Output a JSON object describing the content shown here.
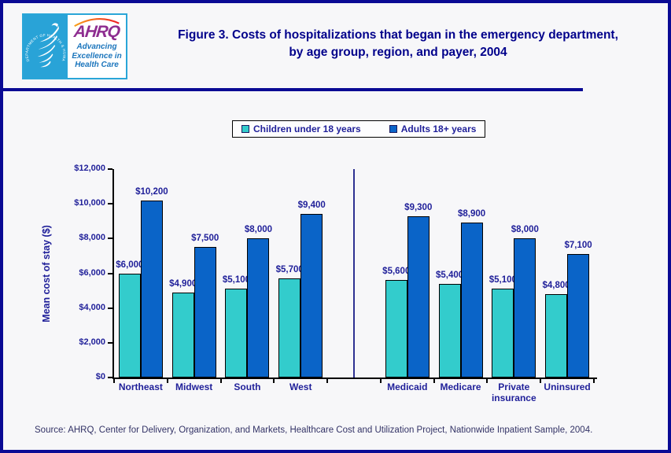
{
  "page": {
    "background": "#f7f7f9",
    "border_color": "#0a0a94"
  },
  "header": {
    "logo": {
      "hhs_seal_text": "DEPARTMENT OF HEALTH & HUMAN SERVICES · USA",
      "ahrq_acronym": "AHRQ",
      "tagline": "Advancing Excellence in Health Care",
      "seal_bg_color": "#29a3d7",
      "ahrq_purple": "#8e2d90",
      "tagline_blue": "#1b75bc"
    },
    "title": "Figure 3. Costs of hospitalizations that began in the emergency department, by age group, region, and payer, 2004",
    "title_color": "#00008b"
  },
  "chart_data": {
    "type": "bar",
    "title": "Figure 3. Costs of hospitalizations that began in the emergency department, by age group, region, and payer, 2004",
    "xlabel": "",
    "ylabel": "Mean cost of stay ($)",
    "ylim": [
      0,
      12000
    ],
    "ytick_step": 2000,
    "ytick_labels": [
      "$0",
      "$2,000",
      "$4,000",
      "$6,000",
      "$8,000",
      "$10,000",
      "$12,000"
    ],
    "grid": false,
    "legend_position": "top-center",
    "categories": [
      "Northeast",
      "Midwest",
      "South",
      "West",
      "Medicaid",
      "Medicare",
      "Private insurance",
      "Uninsured"
    ],
    "group_separator_after_index": 3,
    "series": [
      {
        "name": "Children under 18 years",
        "color": "#33cccc",
        "values": [
          6000,
          4900,
          5100,
          5700,
          5600,
          5400,
          5100,
          4800
        ],
        "value_labels": [
          "$6,000",
          "$4,900",
          "$5,100",
          "$5,700",
          "$5,600",
          "$5,400",
          "$5,100",
          "$4,800"
        ]
      },
      {
        "name": "Adults 18+ years",
        "color": "#0a64c8",
        "values": [
          10200,
          7500,
          8000,
          9400,
          9300,
          8900,
          8000,
          7100
        ],
        "value_labels": [
          "$10,200",
          "$7,500",
          "$8,000",
          "$9,400",
          "$9,300",
          "$8,900",
          "$8,000",
          "$7,100"
        ]
      }
    ]
  },
  "footer": {
    "source": "Source: AHRQ, Center for Delivery, Organization, and Markets, Healthcare Cost and Utilization Project, Nationwide Inpatient Sample, 2004."
  }
}
